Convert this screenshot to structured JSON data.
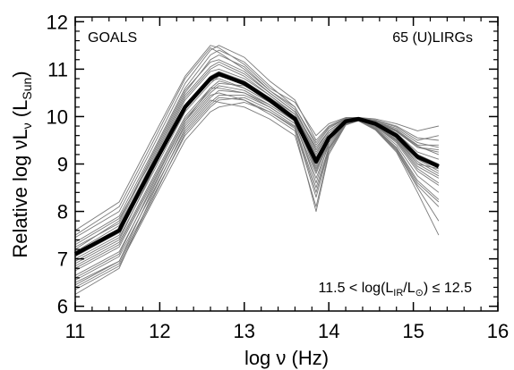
{
  "chart_data": {
    "type": "line",
    "xlabel": "log ν (Hz)",
    "ylabel": "Relative log νLν (LSun)",
    "ylabel_parts": {
      "main": "Relative log νL",
      "sub_nu": "ν",
      "open": " (L",
      "sub_sun": "Sun",
      "close": ")"
    },
    "xlim": [
      11,
      16
    ],
    "ylim": [
      5.9,
      12.1
    ],
    "x_ticks": [
      11,
      12,
      13,
      14,
      15,
      16
    ],
    "x_tick_labels": [
      "11",
      "12",
      "13",
      "14",
      "15",
      "16"
    ],
    "y_ticks": [
      6,
      7,
      8,
      9,
      10,
      11,
      12
    ],
    "y_tick_labels": [
      "6",
      "7",
      "8",
      "9",
      "10",
      "11",
      "12"
    ],
    "grid": false,
    "annotations": {
      "top_left": "GOALS",
      "top_right": "65 (U)LIRGs",
      "bottom_right_parts": {
        "pre": "11.5 < log(L",
        "sub_ir": "IR",
        "mid": "/L",
        "sub_sun": "⊙",
        "post": ") ≤ 12.5"
      }
    },
    "x": [
      11.0,
      11.52,
      11.9,
      12.3,
      12.6,
      12.7,
      13.0,
      13.3,
      13.6,
      13.85,
      14.0,
      14.2,
      14.35,
      14.55,
      14.8,
      15.05,
      15.3
    ],
    "series": [
      {
        "role": "median",
        "values": [
          7.1,
          7.6,
          8.9,
          10.2,
          10.8,
          10.9,
          10.7,
          10.35,
          9.95,
          9.05,
          9.55,
          9.9,
          9.95,
          9.85,
          9.6,
          9.15,
          8.95
        ]
      },
      {
        "values": [
          7.25,
          7.75,
          9.1,
          10.5,
          11.2,
          11.3,
          11.05,
          10.55,
          10.15,
          9.3,
          9.7,
          9.95,
          9.95,
          9.9,
          9.7,
          9.35,
          9.25
        ]
      },
      {
        "values": [
          7.45,
          8.0,
          9.3,
          10.7,
          11.4,
          11.5,
          11.25,
          10.75,
          10.35,
          9.5,
          9.8,
          9.97,
          9.97,
          9.93,
          9.8,
          9.55,
          9.5
        ]
      },
      {
        "values": [
          7.6,
          8.2,
          9.5,
          10.85,
          11.5,
          11.45,
          11.1,
          10.6,
          10.3,
          9.6,
          9.85,
          9.98,
          9.98,
          9.95,
          9.85,
          9.7,
          9.8
        ]
      },
      {
        "values": [
          7.35,
          7.9,
          9.2,
          10.6,
          11.3,
          11.4,
          11.15,
          10.65,
          10.2,
          9.4,
          9.75,
          9.96,
          9.96,
          9.9,
          9.75,
          9.45,
          9.35
        ]
      },
      {
        "values": [
          7.15,
          7.7,
          9.0,
          10.4,
          11.0,
          11.1,
          10.85,
          10.45,
          10.05,
          9.2,
          9.65,
          9.93,
          9.95,
          9.88,
          9.65,
          9.25,
          9.1
        ]
      },
      {
        "values": [
          7.05,
          7.55,
          8.85,
          10.25,
          10.85,
          10.95,
          10.75,
          10.4,
          10.0,
          9.1,
          9.6,
          9.92,
          9.95,
          9.86,
          9.62,
          9.2,
          9.0
        ]
      },
      {
        "values": [
          6.95,
          7.45,
          8.75,
          10.1,
          10.7,
          10.85,
          10.7,
          10.4,
          10.05,
          9.15,
          9.6,
          9.92,
          9.95,
          9.85,
          9.6,
          9.1,
          8.85
        ]
      },
      {
        "values": [
          6.85,
          7.35,
          8.65,
          10.0,
          10.6,
          10.75,
          10.6,
          10.3,
          9.95,
          9.0,
          9.55,
          9.9,
          9.94,
          9.84,
          9.55,
          9.05,
          8.8
        ]
      },
      {
        "values": [
          6.75,
          7.25,
          8.55,
          9.9,
          10.5,
          10.65,
          10.55,
          10.25,
          9.9,
          8.9,
          9.5,
          9.88,
          9.94,
          9.82,
          9.5,
          8.95,
          8.7
        ]
      },
      {
        "values": [
          6.65,
          7.15,
          8.45,
          9.8,
          10.4,
          10.55,
          10.5,
          10.2,
          9.85,
          8.8,
          9.45,
          9.87,
          9.93,
          9.8,
          9.45,
          8.85,
          8.55
        ]
      },
      {
        "values": [
          6.55,
          7.05,
          8.35,
          9.7,
          10.3,
          10.45,
          10.45,
          10.2,
          9.85,
          8.7,
          9.4,
          9.86,
          9.93,
          9.78,
          9.4,
          8.75,
          8.4
        ]
      },
      {
        "values": [
          6.45,
          6.95,
          8.25,
          9.6,
          10.2,
          10.35,
          10.4,
          10.15,
          9.8,
          8.5,
          9.35,
          9.85,
          9.92,
          9.76,
          9.35,
          8.65,
          8.25
        ]
      },
      {
        "values": [
          6.35,
          6.85,
          8.15,
          9.5,
          10.1,
          10.2,
          10.3,
          10.1,
          9.75,
          8.3,
          9.3,
          9.84,
          9.92,
          9.74,
          9.3,
          8.55,
          8.1
        ]
      },
      {
        "values": [
          6.5,
          6.95,
          8.4,
          9.85,
          10.45,
          10.5,
          10.35,
          10.05,
          9.7,
          8.0,
          9.2,
          9.82,
          9.91,
          9.72,
          9.25,
          8.4,
          7.5
        ]
      },
      {
        "values": [
          6.25,
          6.8,
          8.3,
          9.75,
          10.35,
          10.3,
          10.2,
          9.95,
          9.6,
          8.1,
          9.25,
          9.83,
          9.91,
          9.73,
          9.28,
          8.5,
          7.8
        ]
      },
      {
        "values": [
          6.9,
          7.4,
          8.8,
          10.2,
          10.75,
          10.8,
          10.6,
          10.3,
          9.9,
          8.95,
          9.55,
          9.91,
          9.95,
          9.84,
          9.55,
          9.0,
          8.9
        ]
      },
      {
        "values": [
          7.0,
          7.5,
          8.95,
          10.35,
          10.95,
          11.0,
          10.8,
          10.45,
          10.05,
          9.25,
          9.65,
          9.93,
          9.96,
          9.88,
          9.68,
          9.35,
          9.3
        ]
      },
      {
        "values": [
          7.2,
          7.8,
          9.15,
          10.55,
          11.15,
          11.2,
          10.95,
          10.5,
          10.1,
          9.35,
          9.7,
          9.94,
          9.96,
          9.9,
          9.72,
          9.4,
          9.4
        ]
      },
      {
        "values": [
          7.3,
          7.85,
          9.05,
          10.45,
          11.05,
          11.15,
          10.9,
          10.5,
          10.1,
          9.3,
          9.7,
          9.94,
          9.96,
          9.89,
          9.7,
          9.38,
          9.2
        ]
      },
      {
        "values": [
          6.8,
          7.3,
          8.6,
          9.95,
          10.55,
          10.7,
          10.65,
          10.35,
          9.95,
          8.85,
          9.5,
          9.89,
          9.94,
          9.83,
          9.52,
          9.0,
          8.75
        ]
      },
      {
        "values": [
          6.6,
          7.1,
          8.5,
          9.9,
          10.6,
          10.6,
          10.5,
          10.25,
          9.9,
          8.6,
          9.45,
          9.87,
          9.93,
          9.8,
          9.48,
          8.9,
          8.6
        ]
      },
      {
        "values": [
          7.5,
          8.1,
          9.4,
          10.8,
          11.45,
          11.35,
          11.0,
          10.55,
          10.2,
          9.45,
          9.78,
          9.96,
          9.97,
          9.92,
          9.78,
          9.5,
          9.6
        ]
      },
      {
        "values": [
          6.4,
          6.9,
          8.2,
          9.65,
          10.25,
          10.4,
          10.35,
          10.1,
          9.78,
          8.4,
          9.33,
          9.85,
          9.92,
          9.75,
          9.33,
          8.6,
          8.2
        ]
      }
    ]
  }
}
